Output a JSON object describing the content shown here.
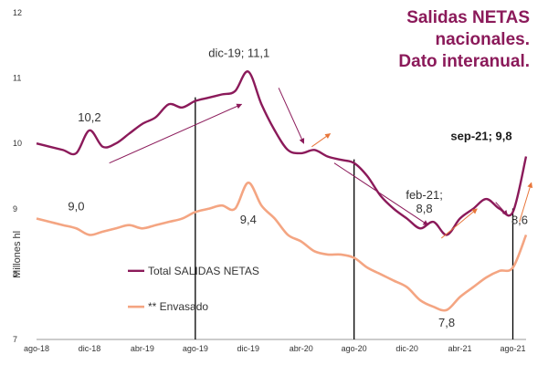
{
  "colors": {
    "total": "#8b1a5a",
    "envasado": "#f4a582",
    "trend_arrow_up": "#8b1a5a",
    "trend_arrow_down": "#8b1a5a",
    "trend_arrow_orange": "#e8763a",
    "title": "#8b1a5a",
    "vline": "#000000",
    "grid": "#e6e6e6"
  },
  "chart_data": {
    "type": "line",
    "title_lines": [
      "Salidas NETAS",
      "nacionales.",
      "Dato interanual."
    ],
    "ylabel": "Millones hl",
    "ylim": [
      7,
      12
    ],
    "yticks": [
      "7",
      "8",
      "9",
      "10",
      "11",
      "12"
    ],
    "xtick_labels": [
      "ago-18",
      "dic-18",
      "abr-19",
      "ago-19",
      "dic-19",
      "abr-20",
      "ago-20",
      "dic-20",
      "abr-21",
      "ago-21"
    ],
    "x": [
      "ago-18",
      "sep-18",
      "oct-18",
      "nov-18",
      "dic-18",
      "ene-19",
      "feb-19",
      "mar-19",
      "abr-19",
      "may-19",
      "jun-19",
      "jul-19",
      "ago-19",
      "sep-19",
      "oct-19",
      "nov-19",
      "dic-19",
      "ene-20",
      "feb-20",
      "mar-20",
      "abr-20",
      "may-20",
      "jun-20",
      "jul-20",
      "ago-20",
      "sep-20",
      "oct-20",
      "nov-20",
      "dic-20",
      "ene-21",
      "feb-21",
      "mar-21",
      "abr-21",
      "may-21",
      "jun-21",
      "jul-21",
      "ago-21",
      "sep-21"
    ],
    "series": [
      {
        "name": "Total SALIDAS NETAS",
        "values": [
          10.0,
          9.95,
          9.9,
          9.85,
          10.2,
          9.95,
          10.0,
          10.15,
          10.3,
          10.4,
          10.6,
          10.55,
          10.65,
          10.7,
          10.75,
          10.8,
          11.1,
          10.6,
          10.2,
          9.9,
          9.85,
          9.9,
          9.8,
          9.75,
          9.7,
          9.5,
          9.2,
          9.0,
          8.85,
          8.7,
          8.8,
          8.6,
          8.85,
          9.0,
          9.15,
          9.0,
          8.95,
          9.8
        ]
      },
      {
        "name": "** Envasado",
        "values": [
          8.85,
          8.8,
          8.75,
          8.7,
          8.6,
          8.65,
          8.7,
          8.75,
          8.7,
          8.75,
          8.8,
          8.85,
          8.95,
          9.0,
          9.05,
          9.0,
          9.4,
          9.05,
          8.85,
          8.6,
          8.5,
          8.35,
          8.3,
          8.3,
          8.25,
          8.1,
          8.0,
          7.9,
          7.8,
          7.6,
          7.5,
          7.45,
          7.65,
          7.8,
          7.95,
          8.05,
          8.1,
          8.6
        ]
      }
    ],
    "annotations": [
      {
        "text": "10,2"
      },
      {
        "text": "dic-19; 11,1"
      },
      {
        "text": "9,0"
      },
      {
        "text": "9,4"
      },
      {
        "text": "feb-21;"
      },
      {
        "text": "8,8"
      },
      {
        "text": "7,8"
      },
      {
        "text": "sep-21; 9,8"
      },
      {
        "text": "8,6"
      }
    ],
    "vertical_markers": [
      "ago-19",
      "ago-20",
      "ago-21"
    ],
    "legend_placement": "lower-left-inside",
    "grid": false
  }
}
